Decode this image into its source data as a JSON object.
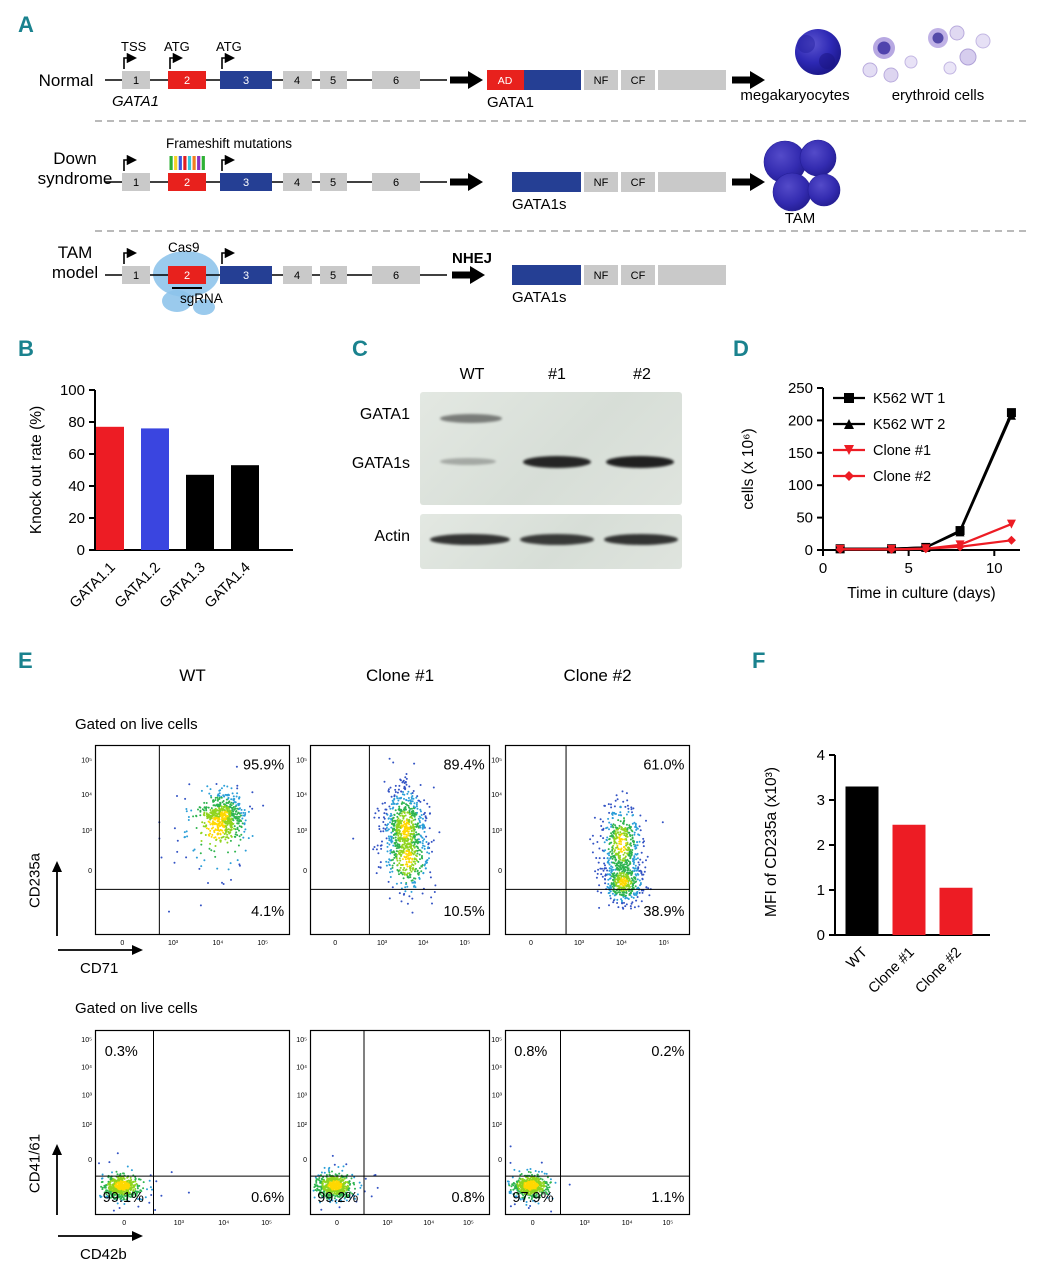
{
  "panelA": {
    "label": "A",
    "exons": [
      "1",
      "2",
      "3",
      "4",
      "5",
      "6"
    ],
    "normal": {
      "title": "Normal",
      "gene": "GATA1",
      "tss": "TSS",
      "atg1": "ATG",
      "atg2": "ATG",
      "protein_ad": "AD",
      "protein_nf": "NF",
      "protein_cf": "CF",
      "protein_name": "GATA1",
      "output1": "megakaryocytes",
      "output2": "erythroid cells"
    },
    "down": {
      "title1": "Down",
      "title2": "syndrome",
      "annotation": "Frameshift mutations",
      "protein_nf": "NF",
      "protein_cf": "CF",
      "protein_name": "GATA1s",
      "output": "TAM"
    },
    "tam": {
      "title1": "TAM",
      "title2": "model",
      "cas9": "Cas9",
      "sgrna": "sgRNA",
      "nhej": "NHEJ",
      "protein_nf": "NF",
      "protein_cf": "CF",
      "protein_name": "GATA1s"
    }
  },
  "panelB": {
    "label": "B"
  },
  "panelC": {
    "label": "C",
    "lanes": [
      "WT",
      "#1",
      "#2"
    ],
    "rows": [
      "GATA1",
      "GATA1s",
      "Actin"
    ]
  },
  "panelD": {
    "label": "D"
  },
  "panelE": {
    "label": "E",
    "columns": [
      "WT",
      "Clone #1",
      "Clone #2"
    ],
    "gate_label": "Gated on live cells",
    "top_axes": {
      "y": "CD235a",
      "x": "CD71"
    },
    "bottom_axes": {
      "y": "CD41/61",
      "x": "CD42b"
    }
  },
  "panelF": {
    "label": "F"
  },
  "colors": {
    "red": "#ed1c24",
    "royal_blue": "#3a45e0",
    "navy": "#253f94",
    "gray_box": "#c9c9c9",
    "panel_label": "#1a828e"
  },
  "chart_data": [
    {
      "id": "knockout",
      "type": "bar",
      "ylabel": "Knock out rate (%)",
      "categories": [
        "GATA1.1",
        "GATA1.2",
        "GATA1.3",
        "GATA1.4"
      ],
      "values": [
        77,
        76,
        47,
        53
      ],
      "colors": [
        "#ed1c24",
        "#3a45e0",
        "#000000",
        "#000000"
      ],
      "ylim": [
        0,
        100
      ],
      "yticks": [
        0,
        20,
        40,
        60,
        80,
        100
      ]
    },
    {
      "id": "growth",
      "type": "line",
      "ylabel": "cells (x 10⁶)",
      "xlabel": "Time in culture (days)",
      "ylim": [
        0,
        250
      ],
      "yticks": [
        0,
        50,
        100,
        150,
        200,
        250
      ],
      "xlim": [
        0,
        11.5
      ],
      "xticks": [
        0,
        5,
        10
      ],
      "legend_position": "top-left",
      "series": [
        {
          "name": "K562 WT 1",
          "color": "#000000",
          "marker": "square",
          "x": [
            1,
            4,
            6,
            8,
            11
          ],
          "y": [
            2,
            2,
            4,
            30,
            212
          ]
        },
        {
          "name": "K562 WT 2",
          "color": "#000000",
          "marker": "triangle",
          "x": [
            1,
            4,
            6,
            8,
            11
          ],
          "y": [
            2,
            2,
            4,
            28,
            208
          ]
        },
        {
          "name": "Clone #1",
          "color": "#ed1c24",
          "marker": "triangle-down",
          "x": [
            1,
            4,
            6,
            8,
            11
          ],
          "y": [
            1,
            1,
            2,
            8,
            40
          ]
        },
        {
          "name": "Clone #2",
          "color": "#ed1c24",
          "marker": "diamond",
          "x": [
            1,
            4,
            6,
            8,
            11
          ],
          "y": [
            1,
            1,
            2,
            5,
            15
          ]
        }
      ]
    },
    {
      "id": "mfi",
      "type": "bar",
      "ylabel": "MFI of CD235a (x10³)",
      "categories": [
        "WT",
        "Clone #1",
        "Clone #2"
      ],
      "values": [
        3.3,
        2.45,
        1.05
      ],
      "colors": [
        "#000000",
        "#ed1c24",
        "#ed1c24"
      ],
      "ylim": [
        0,
        4
      ],
      "yticks": [
        0,
        1,
        2,
        3,
        4
      ]
    },
    {
      "id": "flow_top",
      "type": "scatter",
      "xlabel": "CD71",
      "ylabel": "CD235a",
      "vline": 0.33,
      "hline": 0.76,
      "yticks": [
        "10⁵",
        "10⁴",
        "10³",
        "0"
      ],
      "ytickPos": [
        0.08,
        0.26,
        0.45,
        0.66
      ],
      "xticks": [
        "0",
        "10³",
        "10⁴",
        "10⁵"
      ],
      "xtickPos": [
        0.14,
        0.4,
        0.63,
        0.86
      ],
      "labelPos": {
        "tr": [
          0.97,
          0.13,
          "end"
        ],
        "br": [
          0.97,
          0.9,
          "end"
        ]
      },
      "plots": [
        {
          "name": "WT",
          "labels": {
            "tr": "95.9%",
            "br": "4.1%"
          },
          "clusters": [
            {
              "cx": 0.66,
              "cy": 0.37,
              "sx": 0.05,
              "sy": 0.06,
              "n": 520
            },
            {
              "cx": 0.62,
              "cy": 0.44,
              "sx": 0.11,
              "sy": 0.13,
              "n": 110
            }
          ]
        },
        {
          "name": "Clone #1",
          "labels": {
            "tr": "89.4%",
            "br": "10.5%"
          },
          "clusters": [
            {
              "cx": 0.53,
              "cy": 0.44,
              "sx": 0.06,
              "sy": 0.11,
              "n": 650
            },
            {
              "cx": 0.54,
              "cy": 0.6,
              "sx": 0.07,
              "sy": 0.1,
              "n": 200
            }
          ]
        },
        {
          "name": "Clone #2",
          "labels": {
            "tr": "61.0%",
            "br": "38.9%"
          },
          "clusters": [
            {
              "cx": 0.63,
              "cy": 0.52,
              "sx": 0.055,
              "sy": 0.11,
              "n": 450
            },
            {
              "cx": 0.64,
              "cy": 0.72,
              "sx": 0.055,
              "sy": 0.06,
              "n": 400
            }
          ]
        }
      ]
    },
    {
      "id": "flow_bottom",
      "type": "scatter",
      "xlabel": "CD42b",
      "ylabel": "CD41/61",
      "vline": 0.3,
      "hline": 0.79,
      "yticks": [
        "10⁵",
        "10⁴",
        "10³",
        "10²",
        "0"
      ],
      "ytickPos": [
        0.05,
        0.2,
        0.35,
        0.51,
        0.7
      ],
      "xticks": [
        "0",
        "10³",
        "10⁴",
        "10⁵"
      ],
      "xtickPos": [
        0.15,
        0.43,
        0.66,
        0.88
      ],
      "labelPos": {
        "tl": [
          0.05,
          0.14,
          "start"
        ],
        "tr": [
          0.97,
          0.14,
          "end"
        ],
        "bl": [
          0.04,
          0.93,
          "start"
        ],
        "br": [
          0.97,
          0.93,
          "end"
        ]
      },
      "plots": [
        {
          "name": "WT",
          "labels": {
            "tl": "0.3%",
            "bl": "99.1%",
            "br": "0.6%"
          },
          "clusters": [
            {
              "cx": 0.13,
              "cy": 0.85,
              "sx": 0.042,
              "sy": 0.03,
              "n": 520
            },
            {
              "cx": 0.14,
              "cy": 0.84,
              "sx": 0.09,
              "sy": 0.06,
              "n": 70
            }
          ]
        },
        {
          "name": "Clone #1",
          "labels": {
            "bl": "99.2%",
            "br": "0.8%"
          },
          "clusters": [
            {
              "cx": 0.13,
              "cy": 0.85,
              "sx": 0.045,
              "sy": 0.032,
              "n": 540
            },
            {
              "cx": 0.14,
              "cy": 0.84,
              "sx": 0.09,
              "sy": 0.06,
              "n": 70
            }
          ]
        },
        {
          "name": "Clone #2",
          "labels": {
            "tl": "0.8%",
            "tr": "0.2%",
            "bl": "97.9%",
            "br": "1.1%"
          },
          "clusters": [
            {
              "cx": 0.13,
              "cy": 0.85,
              "sx": 0.043,
              "sy": 0.03,
              "n": 520
            },
            {
              "cx": 0.14,
              "cy": 0.84,
              "sx": 0.09,
              "sy": 0.06,
              "n": 70
            }
          ]
        }
      ]
    }
  ]
}
